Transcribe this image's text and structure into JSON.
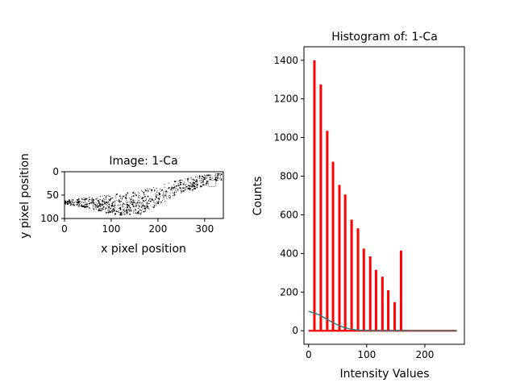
{
  "chart_data": [
    {
      "type": "image",
      "title": "Image: 1-Ca",
      "xlabel": "x pixel position",
      "ylabel": "y pixel position",
      "xlim": [
        0,
        340
      ],
      "ylim": [
        100,
        0
      ],
      "xticks": [
        0,
        100,
        200,
        300
      ],
      "yticks": [
        0,
        50,
        100
      ],
      "colors": {
        "ink": "#000000"
      }
    },
    {
      "type": "bar",
      "title": "Histogram of: 1-Ca",
      "xlabel": "Intensity Values",
      "ylabel": "Counts",
      "xlim": [
        -8,
        268
      ],
      "ylim": [
        -70,
        1470
      ],
      "xticks": [
        0,
        100,
        200
      ],
      "yticks": [
        0,
        200,
        400,
        600,
        800,
        1000,
        1200,
        1400
      ],
      "bins": [
        {
          "x": 10,
          "value": 1400
        },
        {
          "x": 21,
          "value": 1275
        },
        {
          "x": 32,
          "value": 1035
        },
        {
          "x": 42,
          "value": 875
        },
        {
          "x": 53,
          "value": 755
        },
        {
          "x": 63,
          "value": 705
        },
        {
          "x": 74,
          "value": 575
        },
        {
          "x": 85,
          "value": 530
        },
        {
          "x": 95,
          "value": 425
        },
        {
          "x": 106,
          "value": 385
        },
        {
          "x": 116,
          "value": 315
        },
        {
          "x": 127,
          "value": 280
        },
        {
          "x": 137,
          "value": 210
        },
        {
          "x": 148,
          "value": 148
        },
        {
          "x": 159,
          "value": 415
        }
      ],
      "baseline": {
        "x": [
          0,
          255
        ],
        "value": 0
      },
      "curve": {
        "x": [
          0,
          10,
          20,
          30,
          40,
          50,
          60,
          70,
          80,
          90,
          100,
          120,
          150,
          200,
          255
        ],
        "y": [
          100,
          92,
          80,
          62,
          45,
          30,
          18,
          10,
          5,
          2,
          1,
          0,
          0,
          0,
          0
        ]
      },
      "colors": {
        "bars": "#ff0000",
        "curve": "#2e7a7a",
        "axes": "#000000"
      }
    }
  ]
}
